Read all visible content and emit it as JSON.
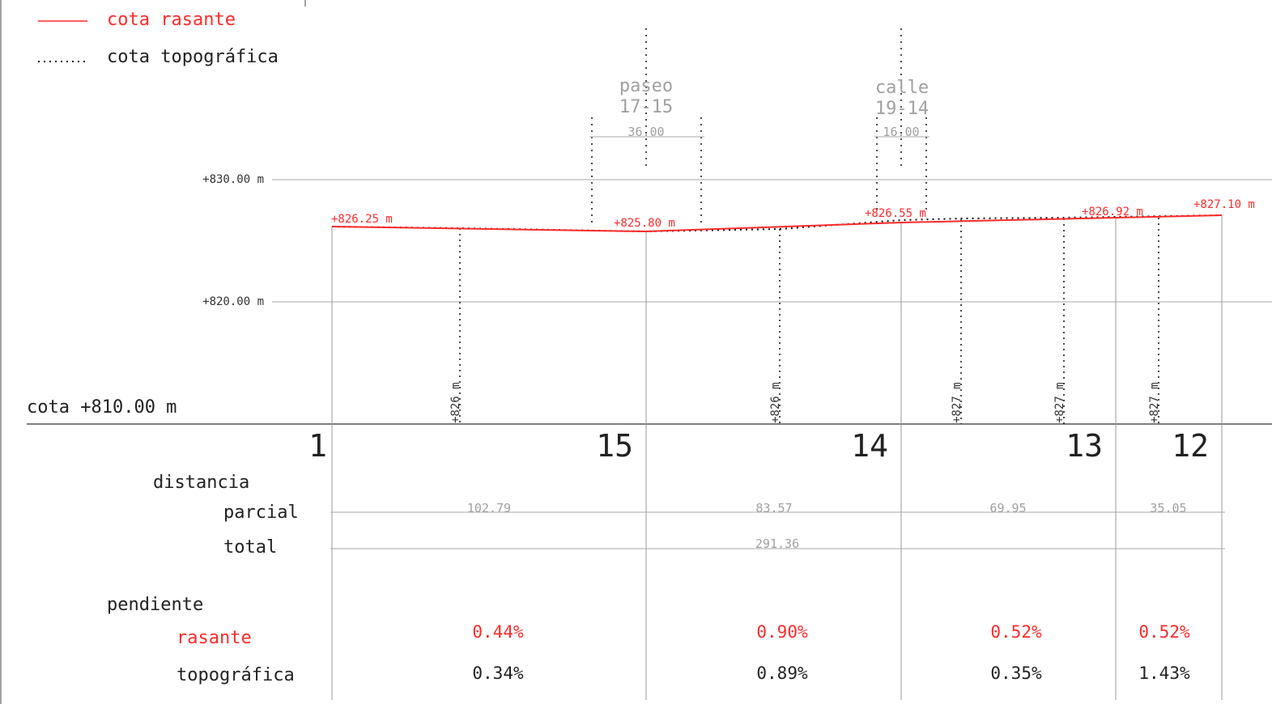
{
  "legend": [
    {
      "label": "cota rasante",
      "color": "#ff2a2a",
      "style": "solid"
    },
    {
      "label": "cota topográfica",
      "color": "#111111",
      "style": "dotted"
    }
  ],
  "datum_label": "cota +810.00 m",
  "gridlines": [
    {
      "label": "+830.00 m",
      "value": 830
    },
    {
      "label": "+820.00 m",
      "value": 820
    }
  ],
  "crossings": [
    {
      "line1": "paseo",
      "line2": "17-15",
      "width": "36.00"
    },
    {
      "line1": "calle",
      "line2": "19-14",
      "width": "16.00"
    }
  ],
  "stations": [
    "1",
    "15",
    "14",
    "13",
    "12"
  ],
  "rasante_labels": [
    "+826.25 m",
    "+825.80 m",
    "+826.55 m",
    "+826.92 m",
    "+827.10 m"
  ],
  "topo_labels": [
    "+826 m",
    "+826 m",
    "+827 m",
    "+827 m",
    "+827 m"
  ],
  "table": {
    "distancia": "distancia",
    "parcial": "parcial",
    "total": "total",
    "pendiente": "pendiente",
    "rasante": "rasante",
    "topografica": "topográfica",
    "parcial_values": [
      "102.79",
      "83.57",
      "69.95",
      "35.05"
    ],
    "total_value": "291.36",
    "rasante_slopes": [
      "0.44%",
      "0.90%",
      "0.52%",
      "0.52%"
    ],
    "topo_slopes": [
      "0.34%",
      "0.89%",
      "0.35%",
      "1.43%"
    ]
  },
  "colors": {
    "rasante": "#ff2a2a",
    "topo": "#111111",
    "grid": "#999999",
    "faint": "#a0a0a0"
  }
}
